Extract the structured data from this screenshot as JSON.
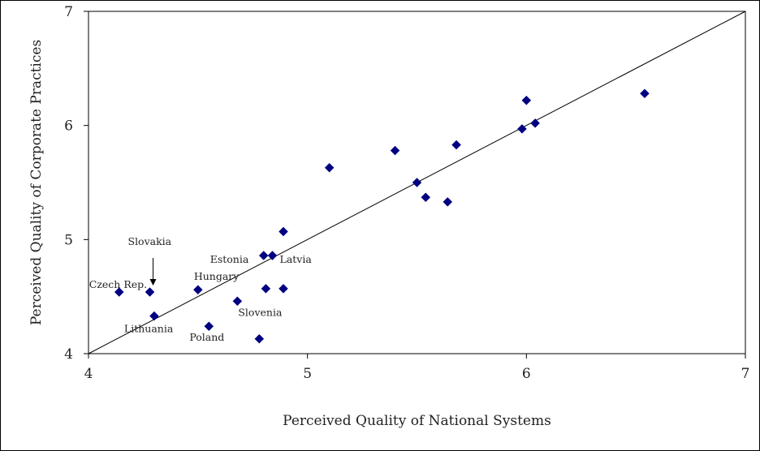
{
  "chart_data": {
    "type": "scatter",
    "xlabel": "Perceived Quality of National Systems",
    "ylabel": "Perceived Quality of Corporate Practices",
    "xlim": [
      4,
      7
    ],
    "ylim": [
      4,
      7
    ],
    "x_ticks": [
      "4",
      "5",
      "6",
      "7"
    ],
    "y_ticks": [
      "4",
      "5",
      "6",
      "7"
    ],
    "grid": false,
    "marker": "diamond",
    "marker_color": "#000080",
    "reference_line": {
      "type": "diagonal",
      "from": [
        4,
        4
      ],
      "to": [
        7,
        7
      ]
    },
    "points": [
      {
        "x": 4.14,
        "y": 4.54,
        "label": "Czech Rep."
      },
      {
        "x": 4.28,
        "y": 4.54,
        "label": "Slovakia",
        "arrow": true
      },
      {
        "x": 4.3,
        "y": 4.33,
        "label": "Lithuania"
      },
      {
        "x": 4.5,
        "y": 4.56,
        "label": "Hungary"
      },
      {
        "x": 4.55,
        "y": 4.24,
        "label": "Poland"
      },
      {
        "x": 4.68,
        "y": 4.46,
        "label": "Slovenia"
      },
      {
        "x": 4.78,
        "y": 4.13,
        "label": ""
      },
      {
        "x": 4.8,
        "y": 4.86,
        "label": "Estonia"
      },
      {
        "x": 4.81,
        "y": 4.57,
        "label": ""
      },
      {
        "x": 4.84,
        "y": 4.86,
        "label": "Latvia"
      },
      {
        "x": 4.89,
        "y": 5.07,
        "label": ""
      },
      {
        "x": 4.89,
        "y": 4.57,
        "label": ""
      },
      {
        "x": 5.1,
        "y": 5.63,
        "label": ""
      },
      {
        "x": 5.4,
        "y": 5.78,
        "label": ""
      },
      {
        "x": 5.5,
        "y": 5.5,
        "label": ""
      },
      {
        "x": 5.54,
        "y": 5.37,
        "label": ""
      },
      {
        "x": 5.64,
        "y": 5.33,
        "label": ""
      },
      {
        "x": 5.68,
        "y": 5.83,
        "label": ""
      },
      {
        "x": 5.98,
        "y": 5.97,
        "label": ""
      },
      {
        "x": 6.0,
        "y": 6.22,
        "label": ""
      },
      {
        "x": 6.04,
        "y": 6.02,
        "label": ""
      },
      {
        "x": 6.54,
        "y": 6.28,
        "label": ""
      }
    ]
  }
}
